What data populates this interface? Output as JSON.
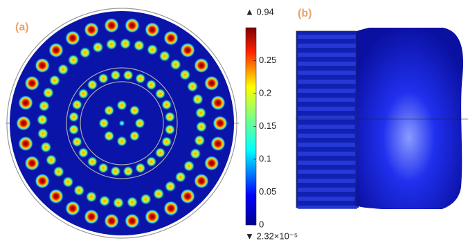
{
  "panels": {
    "a": {
      "label": "(a)"
    },
    "b": {
      "label": "(b)"
    }
  },
  "colorbar": {
    "max_label": "▲ 0.94",
    "min_label": "▼ 2.32×10⁻⁵",
    "lim": [
      0,
      0.3
    ],
    "ticks": [
      0,
      0.05,
      0.1,
      0.15,
      0.2,
      0.25
    ]
  }
}
